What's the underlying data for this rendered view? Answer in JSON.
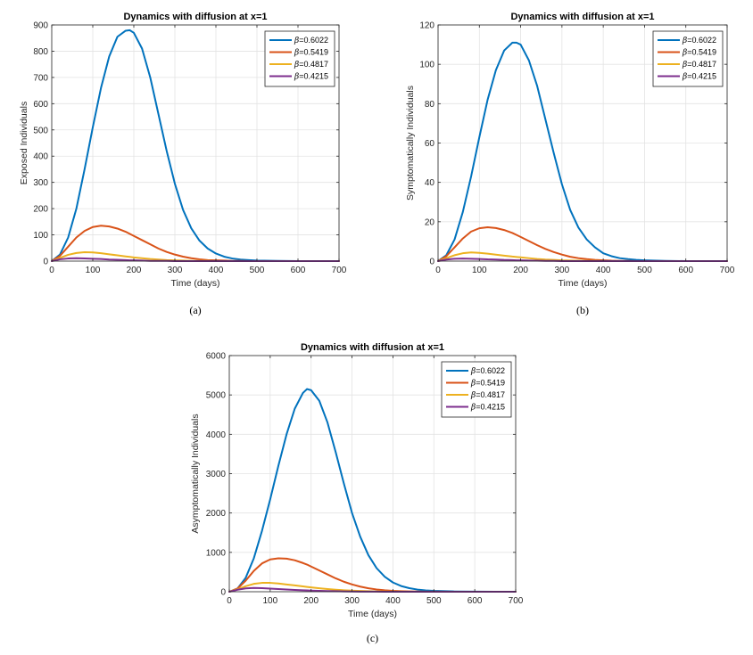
{
  "chart_data": [
    {
      "type": "line",
      "title": "Dynamics with diffusion at x=1",
      "xlabel": "Time (days)",
      "ylabel": "Exposed Individuals",
      "caption": "(a)",
      "xlim": [
        0,
        700
      ],
      "ylim": [
        0,
        900
      ],
      "xticks": [
        "0",
        "100",
        "200",
        "300",
        "400",
        "500",
        "600",
        "700"
      ],
      "yticks": [
        "0",
        "100",
        "200",
        "300",
        "400",
        "500",
        "600",
        "700",
        "800",
        "900"
      ],
      "grid": true,
      "legend_position": "top-right",
      "x": [
        0,
        20,
        40,
        60,
        80,
        100,
        120,
        140,
        160,
        180,
        190,
        200,
        220,
        240,
        260,
        280,
        300,
        320,
        340,
        360,
        380,
        400,
        420,
        440,
        460,
        480,
        500,
        550,
        600,
        650,
        700
      ],
      "series": [
        {
          "name": "β=0.6022",
          "color": "#0072BD",
          "values": [
            0,
            25,
            90,
            200,
            350,
            510,
            660,
            780,
            855,
            878,
            880,
            870,
            810,
            700,
            560,
            420,
            295,
            195,
            125,
            78,
            48,
            29,
            17,
            10,
            6,
            4,
            2,
            1,
            0,
            0,
            0
          ]
        },
        {
          "name": "β=0.5419",
          "color": "#D95319",
          "values": [
            0,
            20,
            55,
            90,
            115,
            130,
            135,
            132,
            124,
            112,
            104,
            96,
            80,
            64,
            48,
            35,
            25,
            17,
            11,
            7,
            4,
            3,
            2,
            1,
            1,
            0,
            0,
            0,
            0,
            0,
            0
          ]
        },
        {
          "name": "β=0.4817",
          "color": "#EDB120",
          "values": [
            0,
            12,
            24,
            31,
            34,
            33,
            30,
            26,
            22,
            18,
            16,
            14,
            11,
            8,
            6,
            4,
            3,
            2,
            1,
            1,
            1,
            0,
            0,
            0,
            0,
            0,
            0,
            0,
            0,
            0,
            0
          ]
        },
        {
          "name": "β=0.4215",
          "color": "#7E2F8E",
          "values": [
            0,
            7,
            10,
            11,
            10,
            9,
            8,
            6,
            5,
            4,
            3,
            3,
            2,
            1,
            1,
            1,
            0,
            0,
            0,
            0,
            0,
            0,
            0,
            0,
            0,
            0,
            0,
            0,
            0,
            0,
            0
          ]
        }
      ]
    },
    {
      "type": "line",
      "title": "Dynamics with diffusion at x=1",
      "xlabel": "Time (days)",
      "ylabel": "Symptomatically Individuals",
      "caption": "(b)",
      "xlim": [
        0,
        700
      ],
      "ylim": [
        0,
        120
      ],
      "xticks": [
        "0",
        "100",
        "200",
        "300",
        "400",
        "500",
        "600",
        "700"
      ],
      "yticks": [
        "0",
        "20",
        "40",
        "60",
        "80",
        "100",
        "120"
      ],
      "grid": true,
      "legend_position": "top-right",
      "x": [
        0,
        20,
        40,
        60,
        80,
        100,
        120,
        140,
        160,
        180,
        190,
        200,
        220,
        240,
        260,
        280,
        300,
        320,
        340,
        360,
        380,
        400,
        420,
        440,
        460,
        480,
        500,
        550,
        600,
        650,
        700
      ],
      "series": [
        {
          "name": "β=0.6022",
          "color": "#0072BD",
          "values": [
            0,
            3,
            11,
            25,
            43,
            63,
            82,
            97,
            107,
            111,
            111,
            110,
            102,
            89,
            72,
            55,
            39,
            26,
            17,
            11,
            7,
            4,
            2.5,
            1.5,
            1,
            0.6,
            0.4,
            0.1,
            0,
            0,
            0
          ]
        },
        {
          "name": "β=0.5419",
          "color": "#D95319",
          "values": [
            0,
            2.5,
            7,
            11.5,
            15,
            16.7,
            17.2,
            16.8,
            15.8,
            14.3,
            13.3,
            12.3,
            10.2,
            8.1,
            6.2,
            4.6,
            3.3,
            2.2,
            1.5,
            1,
            0.6,
            0.4,
            0.2,
            0.1,
            0.1,
            0,
            0,
            0,
            0,
            0,
            0
          ]
        },
        {
          "name": "β=0.4817",
          "color": "#EDB120",
          "values": [
            0,
            1.5,
            3,
            4,
            4.4,
            4.2,
            3.8,
            3.3,
            2.8,
            2.3,
            2.1,
            1.9,
            1.5,
            1.1,
            0.8,
            0.6,
            0.4,
            0.3,
            0.2,
            0.1,
            0.1,
            0,
            0,
            0,
            0,
            0,
            0,
            0,
            0,
            0,
            0
          ]
        },
        {
          "name": "β=0.4215",
          "color": "#7E2F8E",
          "values": [
            0,
            0.8,
            1.2,
            1.3,
            1.2,
            1.1,
            0.9,
            0.8,
            0.6,
            0.5,
            0.4,
            0.4,
            0.3,
            0.2,
            0.1,
            0.1,
            0,
            0,
            0,
            0,
            0,
            0,
            0,
            0,
            0,
            0,
            0,
            0,
            0,
            0,
            0
          ]
        }
      ]
    },
    {
      "type": "line",
      "title": "Dynamics with diffusion at x=1",
      "xlabel": "Time (days)",
      "ylabel": "Asymptomatically Individuals",
      "caption": "(c)",
      "xlim": [
        0,
        700
      ],
      "ylim": [
        0,
        6000
      ],
      "xticks": [
        "0",
        "100",
        "200",
        "300",
        "400",
        "500",
        "600",
        "700"
      ],
      "yticks": [
        "0",
        "1000",
        "2000",
        "3000",
        "4000",
        "5000",
        "6000"
      ],
      "grid": true,
      "legend_position": "top-right",
      "x": [
        0,
        20,
        40,
        60,
        80,
        100,
        120,
        140,
        160,
        180,
        190,
        200,
        220,
        240,
        260,
        280,
        300,
        320,
        340,
        360,
        380,
        400,
        420,
        440,
        460,
        480,
        500,
        550,
        600,
        650,
        700
      ],
      "series": [
        {
          "name": "β=0.6022",
          "color": "#0072BD",
          "values": [
            0,
            80,
            350,
            850,
            1550,
            2350,
            3200,
            4000,
            4650,
            5050,
            5150,
            5120,
            4850,
            4300,
            3550,
            2750,
            2000,
            1400,
            930,
            600,
            380,
            235,
            145,
            90,
            55,
            35,
            22,
            7,
            2,
            0,
            0
          ]
        },
        {
          "name": "β=0.5419",
          "color": "#D95319",
          "values": [
            0,
            80,
            280,
            530,
            720,
            820,
            850,
            840,
            800,
            730,
            690,
            640,
            540,
            440,
            340,
            255,
            185,
            130,
            88,
            58,
            38,
            24,
            15,
            9,
            6,
            4,
            2,
            0,
            0,
            0,
            0
          ]
        },
        {
          "name": "β=0.4817",
          "color": "#EDB120",
          "values": [
            0,
            60,
            140,
            200,
            225,
            225,
            210,
            185,
            160,
            135,
            122,
            110,
            88,
            68,
            52,
            38,
            28,
            20,
            14,
            9,
            6,
            4,
            2,
            1,
            1,
            0,
            0,
            0,
            0,
            0,
            0
          ]
        },
        {
          "name": "β=0.4215",
          "color": "#7E2F8E",
          "values": [
            0,
            50,
            85,
            95,
            90,
            80,
            68,
            56,
            46,
            37,
            33,
            29,
            23,
            17,
            13,
            9,
            6,
            4,
            3,
            2,
            1,
            1,
            0,
            0,
            0,
            0,
            0,
            0,
            0,
            0,
            0
          ]
        }
      ]
    }
  ]
}
